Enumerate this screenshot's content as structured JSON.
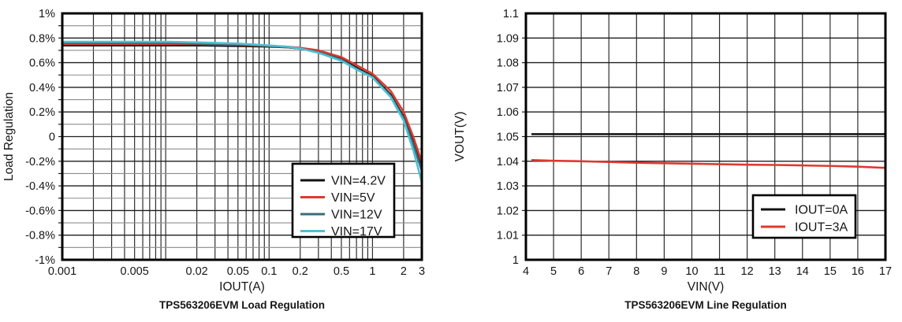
{
  "page": {
    "background": "#ffffff",
    "text_color": "#161616"
  },
  "chart_data": [
    {
      "type": "line",
      "caption": "TPS563206EVM Load Regulation",
      "xlabel": "IOUT(A)",
      "ylabel": "Load Regulation",
      "x_scale": "log",
      "xlim": [
        0.001,
        3
      ],
      "ylim": [
        -1,
        1
      ],
      "grid": "on",
      "x_tick_values": [
        0.001,
        0.005,
        0.02,
        0.05,
        0.1,
        0.2,
        0.5,
        1,
        2,
        3
      ],
      "x_tick_labels": [
        "0.001",
        "0.005",
        "0.02",
        "0.05",
        "0.1",
        "0.2",
        "0.5",
        "1",
        "2",
        "3"
      ],
      "y_tick_values": [
        -1,
        -0.8,
        -0.6,
        -0.4,
        -0.2,
        0,
        0.2,
        0.4,
        0.6,
        0.8,
        1
      ],
      "y_tick_labels": [
        "-1%",
        "-0.8%",
        "-0.6%",
        "-0.4%",
        "-0.2%",
        "0",
        "0.2%",
        "0.4%",
        "0.6%",
        "0.8%",
        "1%"
      ],
      "y_grid_step": 0.1,
      "y_major_step": 0.2,
      "legend_position": "lower-right-inside",
      "x": [
        0.001,
        0.002,
        0.005,
        0.01,
        0.02,
        0.05,
        0.1,
        0.15,
        0.2,
        0.3,
        0.5,
        0.7,
        1,
        1.5,
        2,
        2.5,
        3
      ],
      "series": [
        {
          "name": "VIN=4.2V",
          "color": "#111111",
          "y": [
            0.74,
            0.74,
            0.74,
            0.74,
            0.74,
            0.735,
            0.73,
            0.725,
            0.715,
            0.69,
            0.63,
            0.56,
            0.49,
            0.34,
            0.16,
            -0.05,
            -0.26
          ]
        },
        {
          "name": "VIN=5V",
          "color": "#dc3a2f",
          "y": [
            0.75,
            0.75,
            0.75,
            0.75,
            0.75,
            0.745,
            0.735,
            0.73,
            0.72,
            0.7,
            0.645,
            0.58,
            0.51,
            0.37,
            0.2,
            -0.01,
            -0.21
          ]
        },
        {
          "name": "VIN=12V",
          "color": "#3b6b79",
          "y": [
            0.76,
            0.76,
            0.76,
            0.76,
            0.755,
            0.75,
            0.735,
            0.725,
            0.715,
            0.685,
            0.625,
            0.55,
            0.485,
            0.33,
            0.15,
            -0.07,
            -0.28
          ]
        },
        {
          "name": "VIN=17V",
          "color": "#4fc0d1",
          "y": [
            0.77,
            0.77,
            0.77,
            0.77,
            0.765,
            0.755,
            0.74,
            0.73,
            0.715,
            0.68,
            0.615,
            0.545,
            0.48,
            0.32,
            0.13,
            -0.12,
            -0.37
          ]
        }
      ]
    },
    {
      "type": "line",
      "caption": "TPS563206EVM Line Regulation",
      "xlabel": "VIN(V)",
      "ylabel": "VOUT(V)",
      "x_scale": "linear",
      "xlim": [
        4,
        17
      ],
      "ylim": [
        1,
        1.1
      ],
      "grid": "on",
      "x_grid_step": 1,
      "x_tick_values": [
        4,
        5,
        6,
        7,
        8,
        9,
        10,
        11,
        12,
        13,
        14,
        15,
        16,
        17
      ],
      "x_tick_labels": [
        "4",
        "5",
        "6",
        "7",
        "8",
        "9",
        "10",
        "11",
        "12",
        "13",
        "14",
        "15",
        "16",
        "17"
      ],
      "y_tick_values": [
        1,
        1.01,
        1.02,
        1.03,
        1.04,
        1.05,
        1.06,
        1.07,
        1.08,
        1.09,
        1.1
      ],
      "y_tick_labels": [
        "1",
        "1.01",
        "1.02",
        "1.03",
        "1.04",
        "1.05",
        "1.06",
        "1.07",
        "1.08",
        "1.09",
        "1.1"
      ],
      "y_grid_step": 0.01,
      "legend_position": "lower-right-inside",
      "x": [
        4.2,
        5,
        6,
        7,
        8,
        9,
        10,
        11,
        12,
        13,
        14,
        15,
        16,
        17
      ],
      "series": [
        {
          "name": "IOUT=0A",
          "color": "#111111",
          "y": [
            1.051,
            1.051,
            1.051,
            1.051,
            1.051,
            1.051,
            1.051,
            1.051,
            1.051,
            1.051,
            1.051,
            1.051,
            1.051,
            1.051
          ]
        },
        {
          "name": "IOUT=3A",
          "color": "#dc3a2f",
          "y": [
            1.0405,
            1.0402,
            1.04,
            1.0397,
            1.0394,
            1.0392,
            1.039,
            1.0388,
            1.0386,
            1.0385,
            1.0383,
            1.0381,
            1.0378,
            1.0373
          ]
        }
      ]
    }
  ]
}
